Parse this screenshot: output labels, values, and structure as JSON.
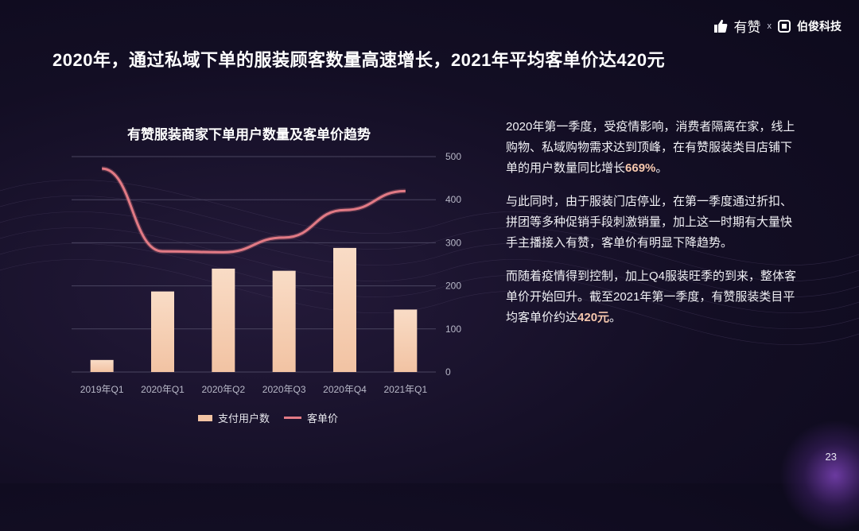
{
  "header": {
    "brand1": "有赞",
    "separator": "x",
    "brand2": "伯俊科技",
    "title": "2020年，通过私域下单的服装顾客数量高速增长，2021年平均客单价达420元"
  },
  "chart_data": {
    "type": "bar",
    "title": "有赞服装商家下单用户数量及客单价趋势",
    "categories": [
      "2019年Q1",
      "2020年Q1",
      "2020年Q2",
      "2020年Q3",
      "2020年Q4",
      "2021年Q1"
    ],
    "y_ticks": [
      "0",
      "100",
      "200",
      "300",
      "400",
      "500"
    ],
    "ylim": [
      0,
      500
    ],
    "series": [
      {
        "name": "支付用户数",
        "type": "bar",
        "values": [
          28,
          187,
          240,
          235,
          288,
          145
        ]
      },
      {
        "name": "客单价",
        "type": "line",
        "values": [
          472,
          280,
          278,
          312,
          376,
          420
        ]
      }
    ],
    "legend_position": "bottom",
    "colors": {
      "bar": "#f2c3a3",
      "line": "#e27a85",
      "grid": "#4a4560",
      "axis_text": "#b8b8c8"
    }
  },
  "text": {
    "p1_a": "2020年第一季度，受疫情影响，消费者隔离在家，线上购物、私域购物需求达到顶峰，在有赞服装类目店铺下单的用户数量同比增长",
    "p1_hl": "669%",
    "p1_b": "。",
    "p2": "与此同时，由于服装门店停业，在第一季度通过折扣、拼团等多种促销手段刺激销量，加上这一时期有大量快手主播接入有赞，客单价有明显下降趋势。",
    "p3_a": "而随着疫情得到控制，加上Q4服装旺季的到来，整体客单价开始回升。截至2021年第一季度，有赞服装类目平均客单价约达",
    "p3_hl": "420元",
    "p3_b": "。"
  },
  "page_number": "23"
}
